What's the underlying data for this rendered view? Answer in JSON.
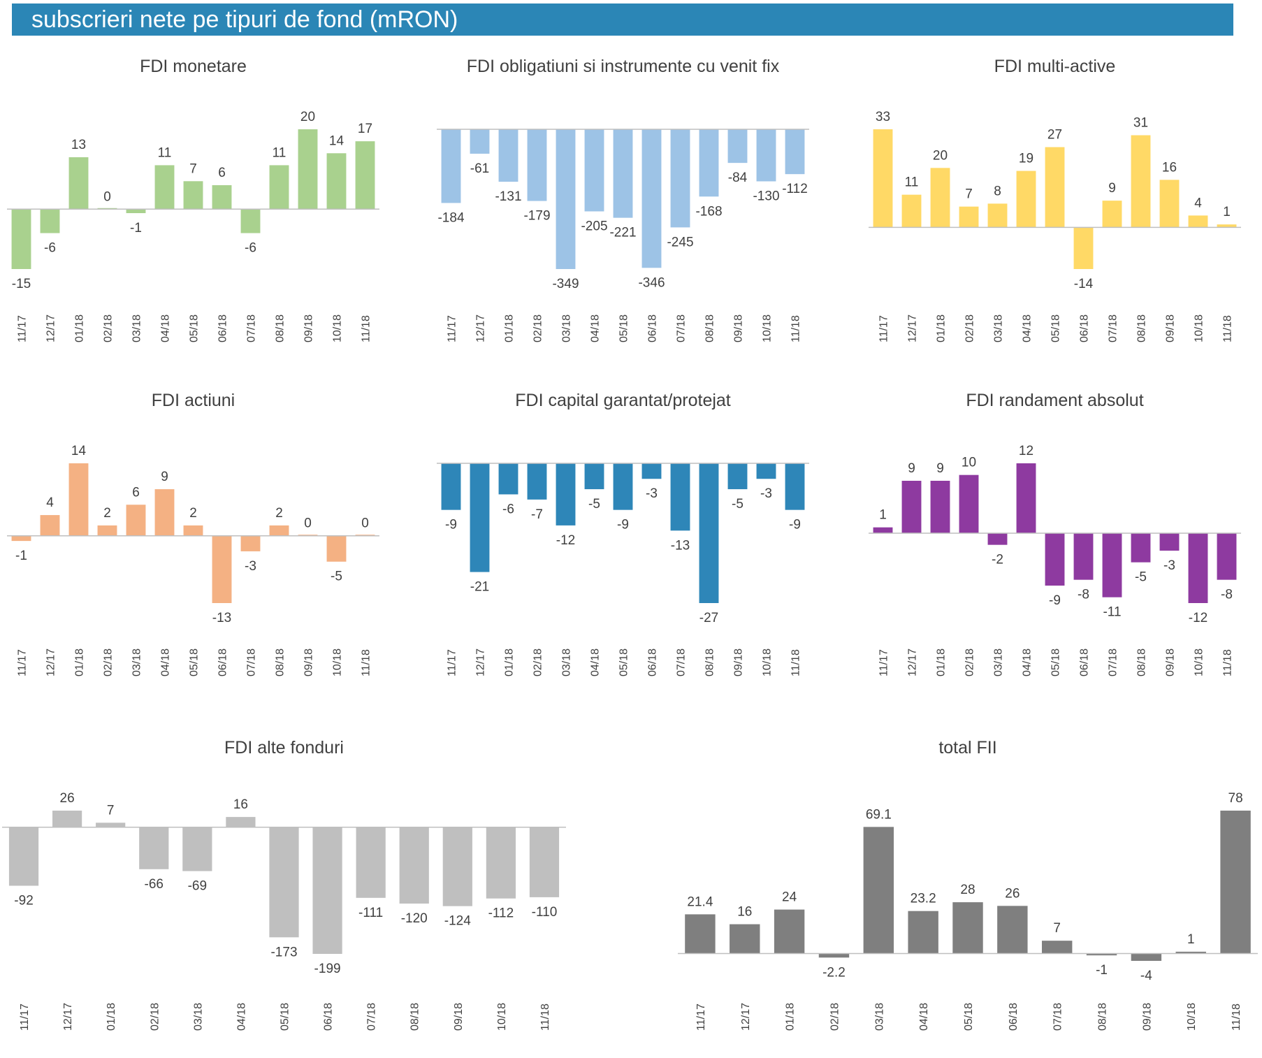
{
  "header": {
    "title": "subscrieri nete pe tipuri de fond (mRON)"
  },
  "chart_data": [
    {
      "type": "bar",
      "title": "FDI monetare",
      "color": "#a9d18e",
      "categories": [
        "11/17",
        "12/17",
        "01/18",
        "02/18",
        "03/18",
        "04/18",
        "05/18",
        "06/18",
        "07/18",
        "08/18",
        "09/18",
        "10/18",
        "11/18"
      ],
      "values": [
        -15,
        -6,
        13,
        0,
        -1,
        11,
        7,
        6,
        -6,
        11,
        20,
        14,
        17
      ],
      "labels": [
        "-15",
        "-6",
        "13",
        "0",
        "-1",
        "11",
        "7",
        "6",
        "-6",
        "11",
        "20",
        "14",
        "17"
      ]
    },
    {
      "type": "bar",
      "title": "FDI obligatiuni si instrumente cu venit fix",
      "color": "#9dc3e6",
      "categories": [
        "11/17",
        "12/17",
        "01/18",
        "02/18",
        "03/18",
        "04/18",
        "05/18",
        "06/18",
        "07/18",
        "08/18",
        "09/18",
        "10/18",
        "11/18"
      ],
      "values": [
        -184,
        -61,
        -131,
        -179,
        -349,
        -205,
        -221,
        -346,
        -245,
        -168,
        -84,
        -130,
        -112
      ],
      "labels": [
        "-184",
        "-61",
        "-131",
        "-179",
        "-349",
        "-205",
        "-221",
        "-346",
        "-245",
        "-168",
        "-84",
        "-130",
        "-112"
      ]
    },
    {
      "type": "bar",
      "title": "FDI multi-active",
      "color": "#ffd966",
      "categories": [
        "11/17",
        "12/17",
        "01/18",
        "02/18",
        "03/18",
        "04/18",
        "05/18",
        "06/18",
        "07/18",
        "08/18",
        "09/18",
        "10/18",
        "11/18"
      ],
      "values": [
        33,
        11,
        20,
        7,
        8,
        19,
        27,
        -14,
        9,
        31,
        16,
        4,
        1
      ],
      "labels": [
        "33",
        "11",
        "20",
        "7",
        "8",
        "19",
        "27",
        "-14",
        "9",
        "31",
        "16",
        "4",
        "1"
      ]
    },
    {
      "type": "bar",
      "title": "FDI actiuni",
      "color": "#f4b183",
      "categories": [
        "11/17",
        "12/17",
        "01/18",
        "02/18",
        "03/18",
        "04/18",
        "05/18",
        "06/18",
        "07/18",
        "08/18",
        "09/18",
        "10/18",
        "11/18"
      ],
      "values": [
        -1,
        4,
        14,
        2,
        6,
        9,
        2,
        -13,
        -3,
        2,
        0,
        -5,
        0
      ],
      "labels": [
        "-1",
        "4",
        "14",
        "2",
        "6",
        "9",
        "2",
        "-13",
        "-3",
        "2",
        "0",
        "-5",
        "0"
      ]
    },
    {
      "type": "bar",
      "title": "FDI capital garantat/protejat",
      "color": "#2e86b8",
      "categories": [
        "11/17",
        "12/17",
        "01/18",
        "02/18",
        "03/18",
        "04/18",
        "05/18",
        "06/18",
        "07/18",
        "08/18",
        "09/18",
        "10/18",
        "11/18"
      ],
      "values": [
        -9,
        -21,
        -6,
        -7,
        -12,
        -5,
        -9,
        -3,
        -13,
        -27,
        -5,
        -3,
        -9
      ],
      "labels": [
        "-9",
        "-21",
        "-6",
        "-7",
        "-12",
        "-5",
        "-9",
        "-3",
        "-13",
        "-27",
        "-5",
        "-3",
        "-9"
      ]
    },
    {
      "type": "bar",
      "title": "FDI randament absolut",
      "color": "#8e3aa0",
      "categories": [
        "11/17",
        "12/17",
        "01/18",
        "02/18",
        "03/18",
        "04/18",
        "05/18",
        "06/18",
        "07/18",
        "08/18",
        "09/18",
        "10/18",
        "11/18"
      ],
      "values": [
        1,
        9,
        9,
        10,
        -2,
        12,
        -9,
        -8,
        -11,
        -5,
        -3,
        -12,
        -8
      ],
      "labels": [
        "1",
        "9",
        "9",
        "10",
        "-2",
        "12",
        "-9",
        "-8",
        "-11",
        "-5",
        "-3",
        "-12",
        "-8"
      ]
    },
    {
      "type": "bar",
      "title": "FDI alte fonduri",
      "color": "#bfbfbf",
      "categories": [
        "11/17",
        "12/17",
        "01/18",
        "02/18",
        "03/18",
        "04/18",
        "05/18",
        "06/18",
        "07/18",
        "08/18",
        "09/18",
        "10/18",
        "11/18"
      ],
      "values": [
        -92,
        26,
        7,
        -66,
        -69,
        16,
        -173,
        -199,
        -111,
        -120,
        -124,
        -112,
        -110
      ],
      "labels": [
        "-92",
        "26",
        "7",
        "-66",
        "-69",
        "16",
        "-173",
        "-199",
        "-111",
        "-120",
        "-124",
        "-112",
        "-110"
      ]
    },
    {
      "type": "bar",
      "title": "total FII",
      "color": "#7f7f7f",
      "categories": [
        "11/17",
        "12/17",
        "01/18",
        "02/18",
        "03/18",
        "04/18",
        "05/18",
        "06/18",
        "07/18",
        "08/18",
        "09/18",
        "10/18",
        "11/18"
      ],
      "values": [
        21.4,
        16,
        24,
        -2.2,
        69.1,
        23.2,
        28,
        26,
        7,
        -1,
        -4,
        1,
        78
      ],
      "labels": [
        "21.4",
        "16",
        "24",
        "-2.2",
        "69.1",
        "23.2",
        "28",
        "26",
        "7",
        "-1",
        "-4",
        "1",
        "78"
      ]
    }
  ]
}
